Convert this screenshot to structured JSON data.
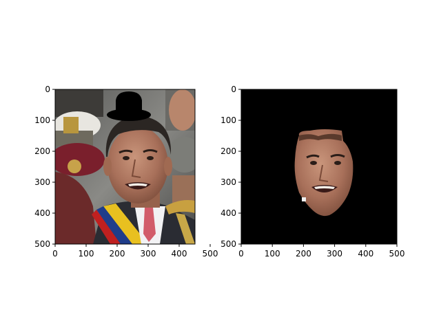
{
  "figure": {
    "background": "#ffffff"
  },
  "chart_data": [
    {
      "type": "image",
      "content": "photo of a man in a suit with a presidential sash, a black bowler hat drawn above his head, uniformed people in the background",
      "xlim": [
        0,
        500
      ],
      "ylim": [
        500,
        0
      ],
      "xticks": [
        0,
        100,
        200,
        300,
        400,
        500
      ],
      "yticks": [
        0,
        100,
        200,
        300,
        400,
        500
      ],
      "xtick_labels": [
        "0",
        "100",
        "200",
        "300",
        "400",
        "500"
      ],
      "ytick_labels": [
        "0",
        "100",
        "200",
        "300",
        "400",
        "500"
      ],
      "image_width": 450,
      "image_height": 500,
      "grid": false,
      "hat_color": "#000000"
    },
    {
      "type": "image",
      "content": "the same face segmented out on a black background",
      "xlim": [
        0,
        500
      ],
      "ylim": [
        500,
        0
      ],
      "xticks": [
        0,
        100,
        200,
        300,
        400,
        500
      ],
      "yticks": [
        0,
        100,
        200,
        300,
        400,
        500
      ],
      "xtick_labels": [
        "0",
        "100",
        "200",
        "300",
        "400",
        "500"
      ],
      "ytick_labels": [
        "0",
        "100",
        "200",
        "300",
        "400",
        "500"
      ],
      "image_width": 500,
      "image_height": 500,
      "grid": false,
      "mask_color": "#000000"
    }
  ]
}
